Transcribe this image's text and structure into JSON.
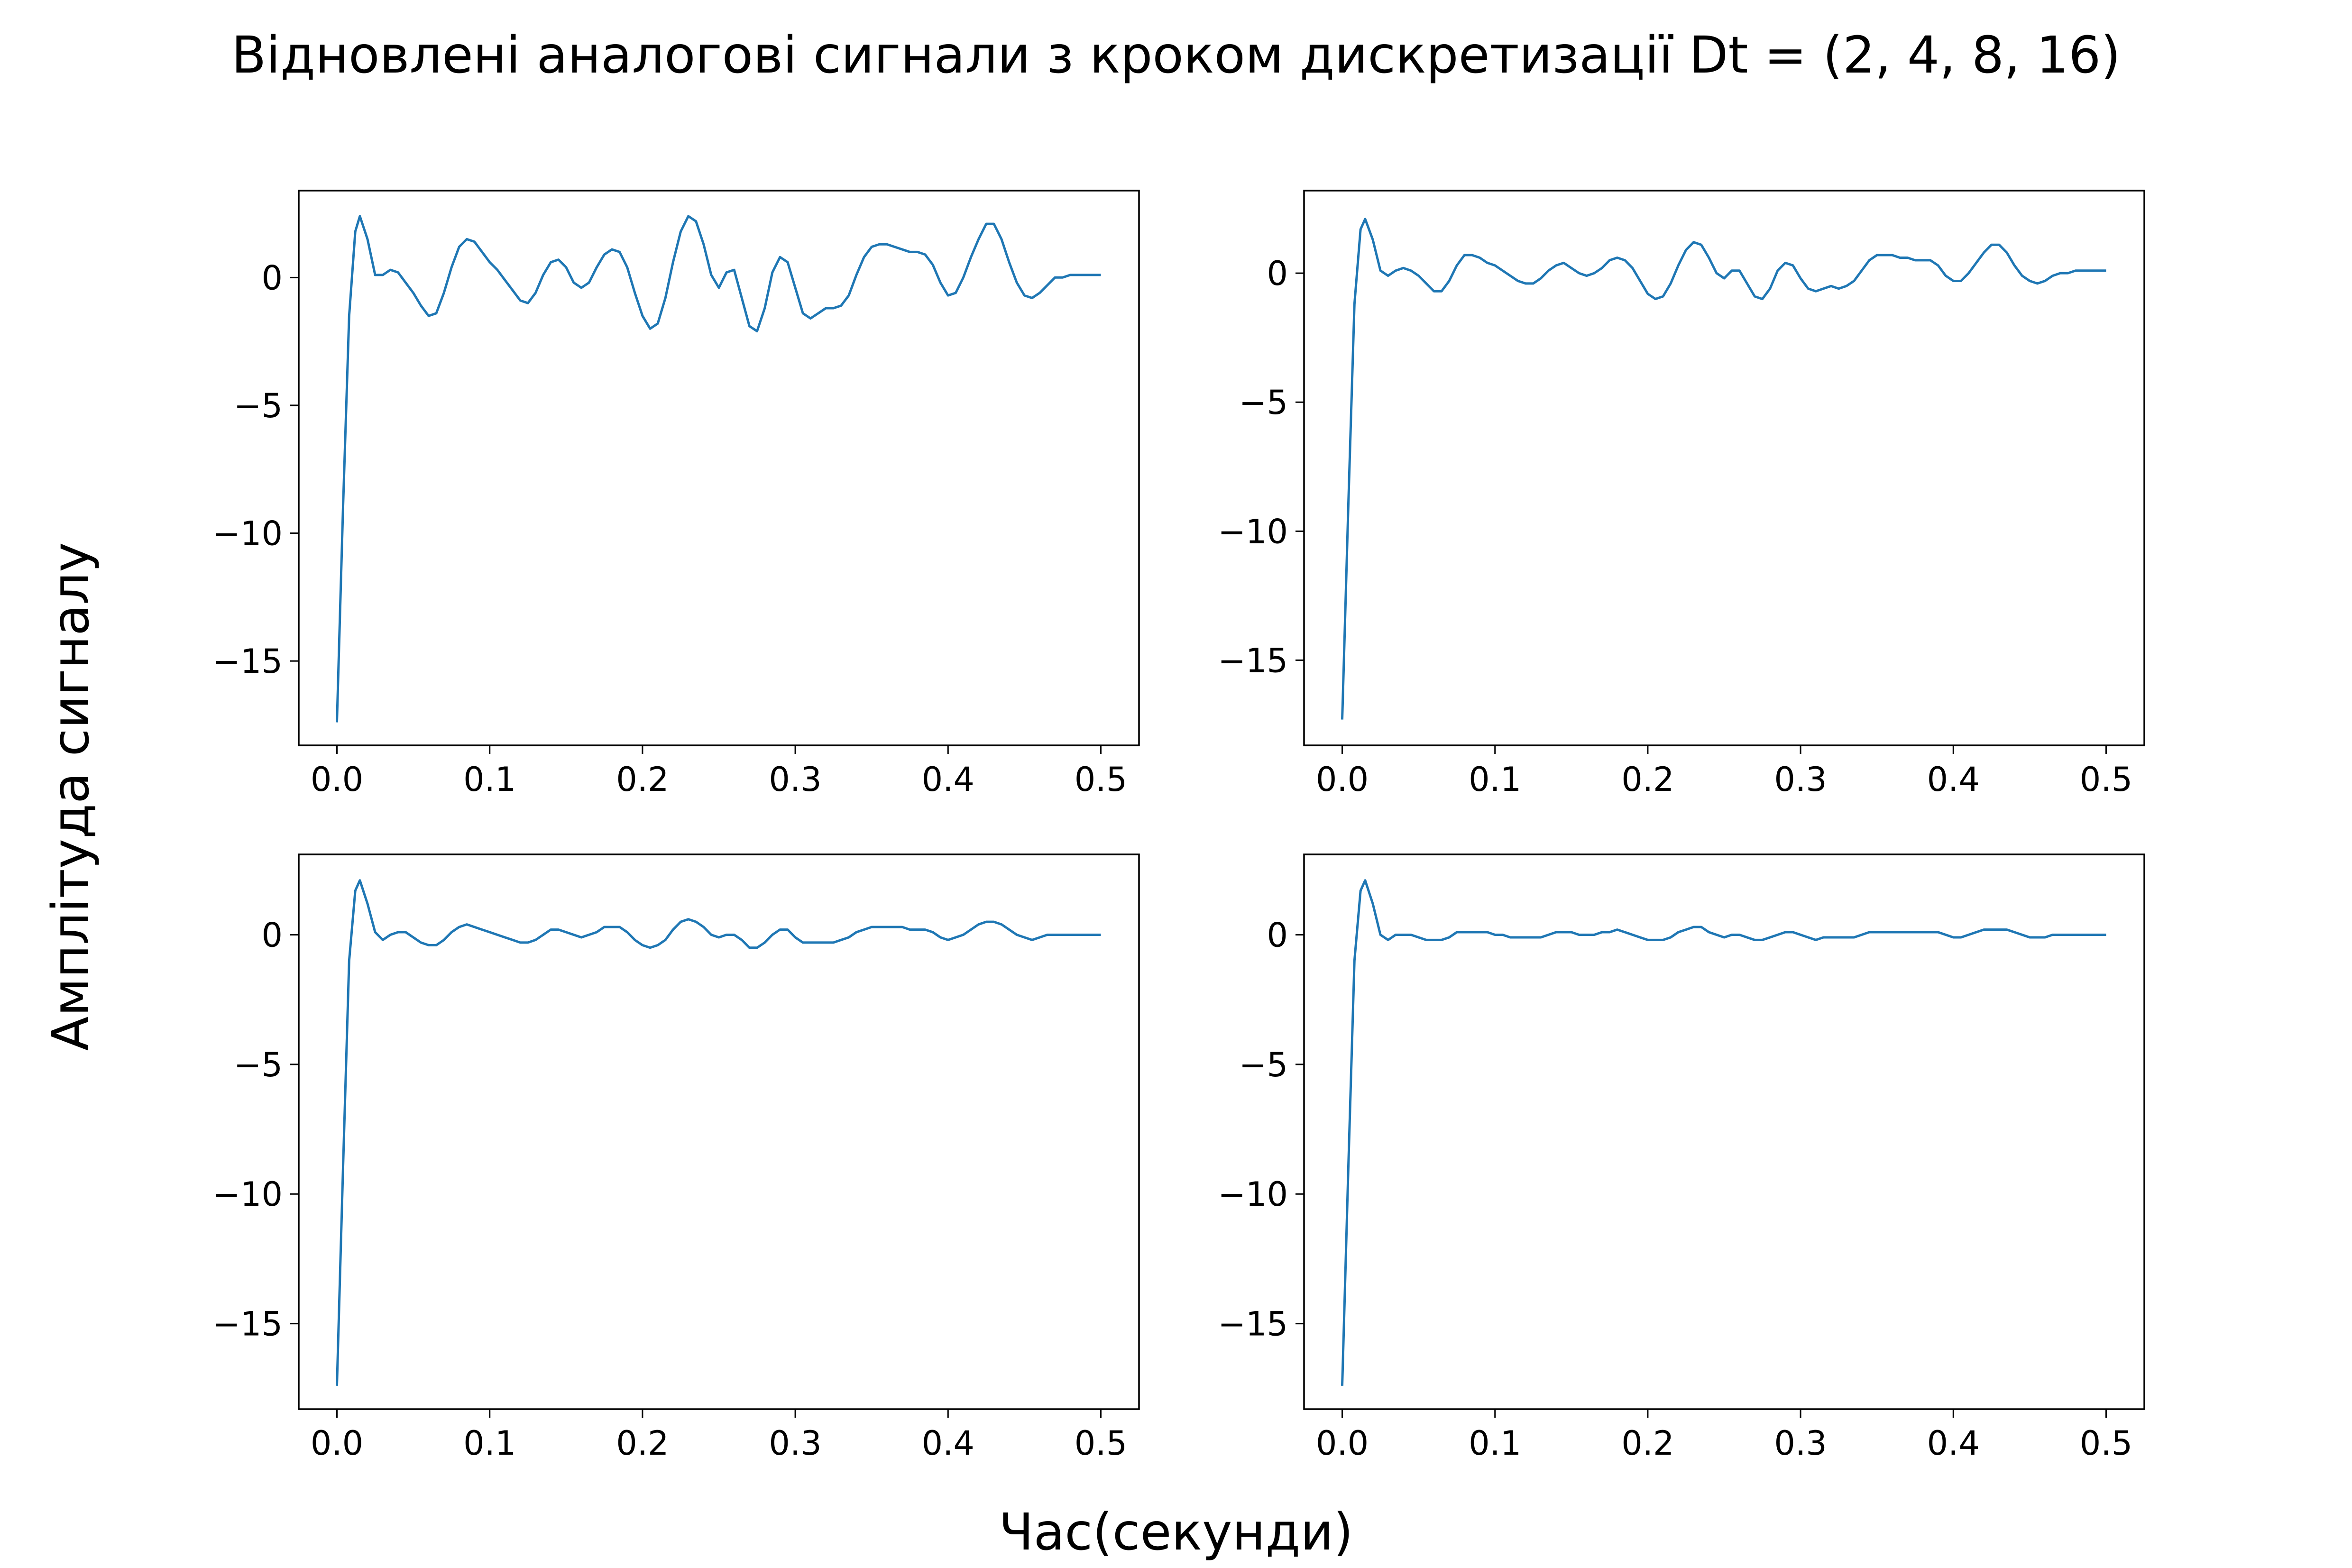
{
  "figure": {
    "title": "Відновлені аналогові сигнали з кроком дискретизації Dt = (2, 4, 8, 16)",
    "xlabel": "Час(секунди)",
    "ylabel": "Амплітуда сигналу"
  },
  "colors": {
    "line": "#1f77b4",
    "axes": "#000000",
    "background": "#ffffff"
  },
  "chart_data": [
    {
      "type": "line",
      "subplot": "top-left",
      "xlim": [
        -0.025,
        0.525
      ],
      "ylim": [
        -18.3,
        3.4
      ],
      "xticks": [
        0.0,
        0.1,
        0.2,
        0.3,
        0.4,
        0.5
      ],
      "xtick_labels": [
        "0.0",
        "0.1",
        "0.2",
        "0.3",
        "0.4",
        "0.5"
      ],
      "yticks": [
        0,
        -5,
        -10,
        -15
      ],
      "ytick_labels": [
        "0",
        "−5",
        "−10",
        "−15"
      ],
      "grid": false,
      "series": [
        {
          "x": [
            0.0,
            0.004,
            0.008,
            0.012,
            0.015,
            0.02,
            0.025,
            0.03,
            0.035,
            0.04,
            0.045,
            0.05,
            0.055,
            0.06,
            0.065,
            0.07,
            0.075,
            0.08,
            0.085,
            0.09,
            0.095,
            0.1,
            0.105,
            0.11,
            0.115,
            0.12,
            0.125,
            0.13,
            0.135,
            0.14,
            0.145,
            0.15,
            0.155,
            0.16,
            0.165,
            0.17,
            0.175,
            0.18,
            0.185,
            0.19,
            0.195,
            0.2,
            0.205,
            0.21,
            0.215,
            0.22,
            0.225,
            0.23,
            0.235,
            0.24,
            0.245,
            0.25,
            0.255,
            0.26,
            0.265,
            0.27,
            0.275,
            0.28,
            0.285,
            0.29,
            0.295,
            0.3,
            0.305,
            0.31,
            0.315,
            0.32,
            0.325,
            0.33,
            0.335,
            0.34,
            0.345,
            0.35,
            0.355,
            0.36,
            0.365,
            0.37,
            0.375,
            0.38,
            0.385,
            0.39,
            0.395,
            0.4,
            0.405,
            0.41,
            0.415,
            0.42,
            0.425,
            0.43,
            0.435,
            0.44,
            0.445,
            0.45,
            0.455,
            0.46,
            0.465,
            0.47,
            0.475,
            0.48,
            0.485,
            0.49,
            0.495,
            0.5
          ],
          "y": [
            -17.4,
            -9.0,
            -1.5,
            1.8,
            2.4,
            1.5,
            0.1,
            0.1,
            0.3,
            0.2,
            -0.2,
            -0.6,
            -1.1,
            -1.5,
            -1.4,
            -0.6,
            0.4,
            1.2,
            1.5,
            1.4,
            1.0,
            0.6,
            0.3,
            -0.1,
            -0.5,
            -0.9,
            -1.0,
            -0.6,
            0.1,
            0.6,
            0.7,
            0.4,
            -0.2,
            -0.4,
            -0.2,
            0.4,
            0.9,
            1.1,
            1.0,
            0.4,
            -0.6,
            -1.5,
            -2.0,
            -1.8,
            -0.8,
            0.6,
            1.8,
            2.4,
            2.2,
            1.3,
            0.1,
            -0.4,
            0.2,
            0.3,
            -0.8,
            -1.9,
            -2.1,
            -1.2,
            0.2,
            0.8,
            0.6,
            -0.4,
            -1.4,
            -1.6,
            -1.4,
            -1.2,
            -1.2,
            -1.1,
            -0.7,
            0.1,
            0.8,
            1.2,
            1.3,
            1.3,
            1.2,
            1.1,
            1.0,
            1.0,
            0.9,
            0.5,
            -0.2,
            -0.7,
            -0.6,
            0.0,
            0.8,
            1.5,
            2.1,
            2.1,
            1.5,
            0.6,
            -0.2,
            -0.7,
            -0.8,
            -0.6,
            -0.3,
            0.0,
            0.0,
            0.1,
            0.1,
            0.1,
            0.1,
            0.1
          ]
        }
      ]
    },
    {
      "type": "line",
      "subplot": "top-right",
      "xlim": [
        -0.025,
        0.525
      ],
      "ylim": [
        -18.3,
        3.2
      ],
      "xticks": [
        0.0,
        0.1,
        0.2,
        0.3,
        0.4,
        0.5
      ],
      "xtick_labels": [
        "0.0",
        "0.1",
        "0.2",
        "0.3",
        "0.4",
        "0.5"
      ],
      "yticks": [
        0,
        -5,
        -10,
        -15
      ],
      "ytick_labels": [
        "0",
        "−5",
        "−10",
        "−15"
      ],
      "grid": false,
      "series": [
        {
          "x": [
            0.0,
            0.004,
            0.008,
            0.012,
            0.015,
            0.02,
            0.025,
            0.03,
            0.035,
            0.04,
            0.045,
            0.05,
            0.055,
            0.06,
            0.065,
            0.07,
            0.075,
            0.08,
            0.085,
            0.09,
            0.095,
            0.1,
            0.105,
            0.11,
            0.115,
            0.12,
            0.125,
            0.13,
            0.135,
            0.14,
            0.145,
            0.15,
            0.155,
            0.16,
            0.165,
            0.17,
            0.175,
            0.18,
            0.185,
            0.19,
            0.195,
            0.2,
            0.205,
            0.21,
            0.215,
            0.22,
            0.225,
            0.23,
            0.235,
            0.24,
            0.245,
            0.25,
            0.255,
            0.26,
            0.265,
            0.27,
            0.275,
            0.28,
            0.285,
            0.29,
            0.295,
            0.3,
            0.305,
            0.31,
            0.315,
            0.32,
            0.325,
            0.33,
            0.335,
            0.34,
            0.345,
            0.35,
            0.355,
            0.36,
            0.365,
            0.37,
            0.375,
            0.38,
            0.385,
            0.39,
            0.395,
            0.4,
            0.405,
            0.41,
            0.415,
            0.42,
            0.425,
            0.43,
            0.435,
            0.44,
            0.445,
            0.45,
            0.455,
            0.46,
            0.465,
            0.47,
            0.475,
            0.48,
            0.485,
            0.49,
            0.495,
            0.5
          ],
          "y": [
            -17.3,
            -9.0,
            -1.2,
            1.7,
            2.1,
            1.3,
            0.1,
            -0.1,
            0.1,
            0.2,
            0.1,
            -0.1,
            -0.4,
            -0.7,
            -0.7,
            -0.3,
            0.3,
            0.7,
            0.7,
            0.6,
            0.4,
            0.3,
            0.1,
            -0.1,
            -0.3,
            -0.4,
            -0.4,
            -0.2,
            0.1,
            0.3,
            0.4,
            0.2,
            0.0,
            -0.1,
            0.0,
            0.2,
            0.5,
            0.6,
            0.5,
            0.2,
            -0.3,
            -0.8,
            -1.0,
            -0.9,
            -0.4,
            0.3,
            0.9,
            1.2,
            1.1,
            0.6,
            0.0,
            -0.2,
            0.1,
            0.1,
            -0.4,
            -0.9,
            -1.0,
            -0.6,
            0.1,
            0.4,
            0.3,
            -0.2,
            -0.6,
            -0.7,
            -0.6,
            -0.5,
            -0.6,
            -0.5,
            -0.3,
            0.1,
            0.5,
            0.7,
            0.7,
            0.7,
            0.6,
            0.6,
            0.5,
            0.5,
            0.5,
            0.3,
            -0.1,
            -0.3,
            -0.3,
            0.0,
            0.4,
            0.8,
            1.1,
            1.1,
            0.8,
            0.3,
            -0.1,
            -0.3,
            -0.4,
            -0.3,
            -0.1,
            0.0,
            0.0,
            0.1,
            0.1,
            0.1,
            0.1,
            0.1
          ]
        }
      ]
    },
    {
      "type": "line",
      "subplot": "bottom-left",
      "xlim": [
        -0.025,
        0.525
      ],
      "ylim": [
        -18.3,
        3.1
      ],
      "xticks": [
        0.0,
        0.1,
        0.2,
        0.3,
        0.4,
        0.5
      ],
      "xtick_labels": [
        "0.0",
        "0.1",
        "0.2",
        "0.3",
        "0.4",
        "0.5"
      ],
      "yticks": [
        0,
        -5,
        -10,
        -15
      ],
      "ytick_labels": [
        "0",
        "−5",
        "−10",
        "−15"
      ],
      "grid": false,
      "series": [
        {
          "x": [
            0.0,
            0.004,
            0.008,
            0.012,
            0.015,
            0.02,
            0.025,
            0.03,
            0.035,
            0.04,
            0.045,
            0.05,
            0.055,
            0.06,
            0.065,
            0.07,
            0.075,
            0.08,
            0.085,
            0.09,
            0.095,
            0.1,
            0.105,
            0.11,
            0.115,
            0.12,
            0.125,
            0.13,
            0.135,
            0.14,
            0.145,
            0.15,
            0.155,
            0.16,
            0.165,
            0.17,
            0.175,
            0.18,
            0.185,
            0.19,
            0.195,
            0.2,
            0.205,
            0.21,
            0.215,
            0.22,
            0.225,
            0.23,
            0.235,
            0.24,
            0.245,
            0.25,
            0.255,
            0.26,
            0.265,
            0.27,
            0.275,
            0.28,
            0.285,
            0.29,
            0.295,
            0.3,
            0.305,
            0.31,
            0.315,
            0.32,
            0.325,
            0.33,
            0.335,
            0.34,
            0.345,
            0.35,
            0.355,
            0.36,
            0.365,
            0.37,
            0.375,
            0.38,
            0.385,
            0.39,
            0.395,
            0.4,
            0.405,
            0.41,
            0.415,
            0.42,
            0.425,
            0.43,
            0.435,
            0.44,
            0.445,
            0.45,
            0.455,
            0.46,
            0.465,
            0.47,
            0.475,
            0.48,
            0.485,
            0.49,
            0.495,
            0.5
          ],
          "y": [
            -17.4,
            -9.0,
            -1.0,
            1.7,
            2.1,
            1.2,
            0.1,
            -0.2,
            0.0,
            0.1,
            0.1,
            -0.1,
            -0.3,
            -0.4,
            -0.4,
            -0.2,
            0.1,
            0.3,
            0.4,
            0.3,
            0.2,
            0.1,
            0.0,
            -0.1,
            -0.2,
            -0.3,
            -0.3,
            -0.2,
            0.0,
            0.2,
            0.2,
            0.1,
            0.0,
            -0.1,
            0.0,
            0.1,
            0.3,
            0.3,
            0.3,
            0.1,
            -0.2,
            -0.4,
            -0.5,
            -0.4,
            -0.2,
            0.2,
            0.5,
            0.6,
            0.5,
            0.3,
            0.0,
            -0.1,
            0.0,
            0.0,
            -0.2,
            -0.5,
            -0.5,
            -0.3,
            0.0,
            0.2,
            0.2,
            -0.1,
            -0.3,
            -0.3,
            -0.3,
            -0.3,
            -0.3,
            -0.2,
            -0.1,
            0.1,
            0.2,
            0.3,
            0.3,
            0.3,
            0.3,
            0.3,
            0.2,
            0.2,
            0.2,
            0.1,
            -0.1,
            -0.2,
            -0.1,
            0.0,
            0.2,
            0.4,
            0.5,
            0.5,
            0.4,
            0.2,
            0.0,
            -0.1,
            -0.2,
            -0.1,
            0.0,
            0.0,
            0.0,
            0.0,
            0.0,
            0.0,
            0.0,
            0.0
          ]
        }
      ]
    },
    {
      "type": "line",
      "subplot": "bottom-right",
      "xlim": [
        -0.025,
        0.525
      ],
      "ylim": [
        -18.3,
        3.1
      ],
      "xticks": [
        0.0,
        0.1,
        0.2,
        0.3,
        0.4,
        0.5
      ],
      "xtick_labels": [
        "0.0",
        "0.1",
        "0.2",
        "0.3",
        "0.4",
        "0.5"
      ],
      "yticks": [
        0,
        -5,
        -10,
        -15
      ],
      "ytick_labels": [
        "0",
        "−5",
        "−10",
        "−15"
      ],
      "grid": false,
      "series": [
        {
          "x": [
            0.0,
            0.004,
            0.008,
            0.012,
            0.015,
            0.02,
            0.025,
            0.03,
            0.035,
            0.04,
            0.045,
            0.05,
            0.055,
            0.06,
            0.065,
            0.07,
            0.075,
            0.08,
            0.085,
            0.09,
            0.095,
            0.1,
            0.105,
            0.11,
            0.115,
            0.12,
            0.125,
            0.13,
            0.135,
            0.14,
            0.145,
            0.15,
            0.155,
            0.16,
            0.165,
            0.17,
            0.175,
            0.18,
            0.185,
            0.19,
            0.195,
            0.2,
            0.205,
            0.21,
            0.215,
            0.22,
            0.225,
            0.23,
            0.235,
            0.24,
            0.245,
            0.25,
            0.255,
            0.26,
            0.265,
            0.27,
            0.275,
            0.28,
            0.285,
            0.29,
            0.295,
            0.3,
            0.305,
            0.31,
            0.315,
            0.32,
            0.325,
            0.33,
            0.335,
            0.34,
            0.345,
            0.35,
            0.355,
            0.36,
            0.365,
            0.37,
            0.375,
            0.38,
            0.385,
            0.39,
            0.395,
            0.4,
            0.405,
            0.41,
            0.415,
            0.42,
            0.425,
            0.43,
            0.435,
            0.44,
            0.445,
            0.45,
            0.455,
            0.46,
            0.465,
            0.47,
            0.475,
            0.48,
            0.485,
            0.49,
            0.495,
            0.5
          ],
          "y": [
            -17.4,
            -9.0,
            -1.0,
            1.7,
            2.1,
            1.2,
            0.0,
            -0.2,
            0.0,
            0.0,
            0.0,
            -0.1,
            -0.2,
            -0.2,
            -0.2,
            -0.1,
            0.1,
            0.1,
            0.1,
            0.1,
            0.1,
            0.0,
            0.0,
            -0.1,
            -0.1,
            -0.1,
            -0.1,
            -0.1,
            0.0,
            0.1,
            0.1,
            0.1,
            0.0,
            0.0,
            0.0,
            0.1,
            0.1,
            0.2,
            0.1,
            0.0,
            -0.1,
            -0.2,
            -0.2,
            -0.2,
            -0.1,
            0.1,
            0.2,
            0.3,
            0.3,
            0.1,
            0.0,
            -0.1,
            0.0,
            0.0,
            -0.1,
            -0.2,
            -0.2,
            -0.1,
            0.0,
            0.1,
            0.1,
            0.0,
            -0.1,
            -0.2,
            -0.1,
            -0.1,
            -0.1,
            -0.1,
            -0.1,
            0.0,
            0.1,
            0.1,
            0.1,
            0.1,
            0.1,
            0.1,
            0.1,
            0.1,
            0.1,
            0.1,
            0.0,
            -0.1,
            -0.1,
            0.0,
            0.1,
            0.2,
            0.2,
            0.2,
            0.2,
            0.1,
            0.0,
            -0.1,
            -0.1,
            -0.1,
            0.0,
            0.0,
            0.0,
            0.0,
            0.0,
            0.0,
            0.0,
            0.0
          ]
        }
      ]
    }
  ]
}
